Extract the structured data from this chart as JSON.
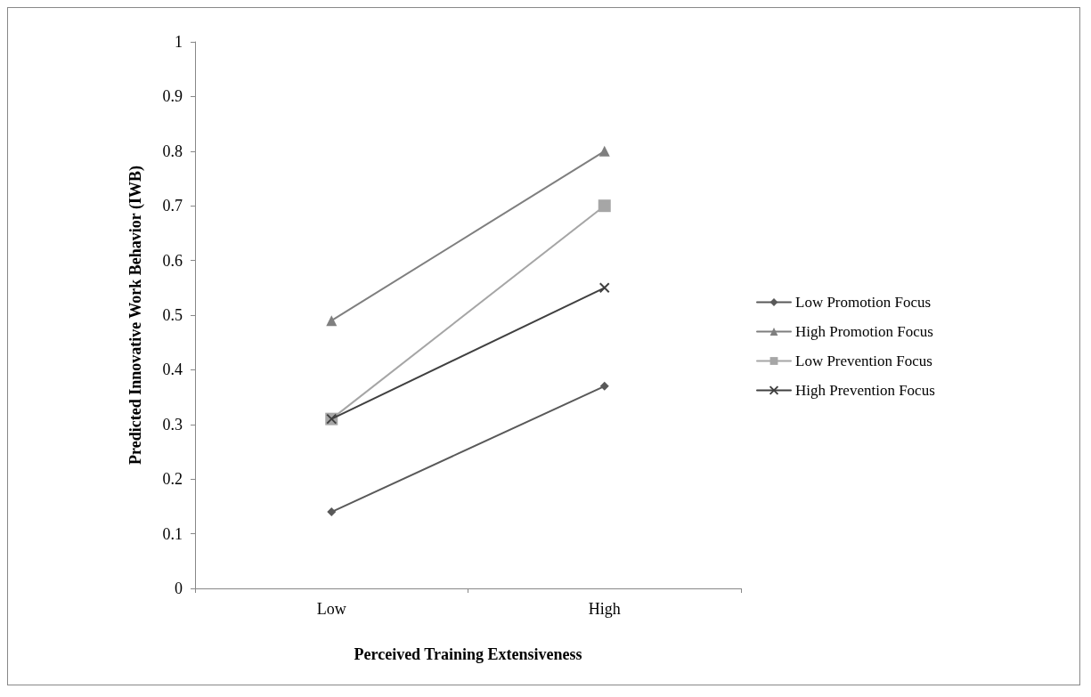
{
  "chart_data": {
    "type": "line",
    "xlabel": "Perceived Training Extensiveness",
    "ylabel": "Predicted Innovative Work Behavior (IWB)",
    "categories": [
      "Low",
      "High"
    ],
    "series": [
      {
        "name": "Low Promotion Focus",
        "color": "#595959",
        "marker": "diamond",
        "values": [
          0.14,
          0.37
        ]
      },
      {
        "name": "High Promotion Focus",
        "color": "#7f7f7f",
        "marker": "triangle",
        "values": [
          0.49,
          0.8
        ]
      },
      {
        "name": "Low Prevention Focus",
        "color": "#a6a6a6",
        "marker": "square",
        "values": [
          0.31,
          0.7
        ]
      },
      {
        "name": "High Prevention Focus",
        "color": "#404040",
        "marker": "cross",
        "values": [
          0.31,
          0.55
        ]
      }
    ],
    "ylim": [
      0,
      1
    ],
    "yticks": [
      0,
      0.1,
      0.2,
      0.3,
      0.4,
      0.5,
      0.6,
      0.7,
      0.8,
      0.9,
      1
    ],
    "grid": false,
    "legend": "right",
    "line_style": "solid"
  }
}
